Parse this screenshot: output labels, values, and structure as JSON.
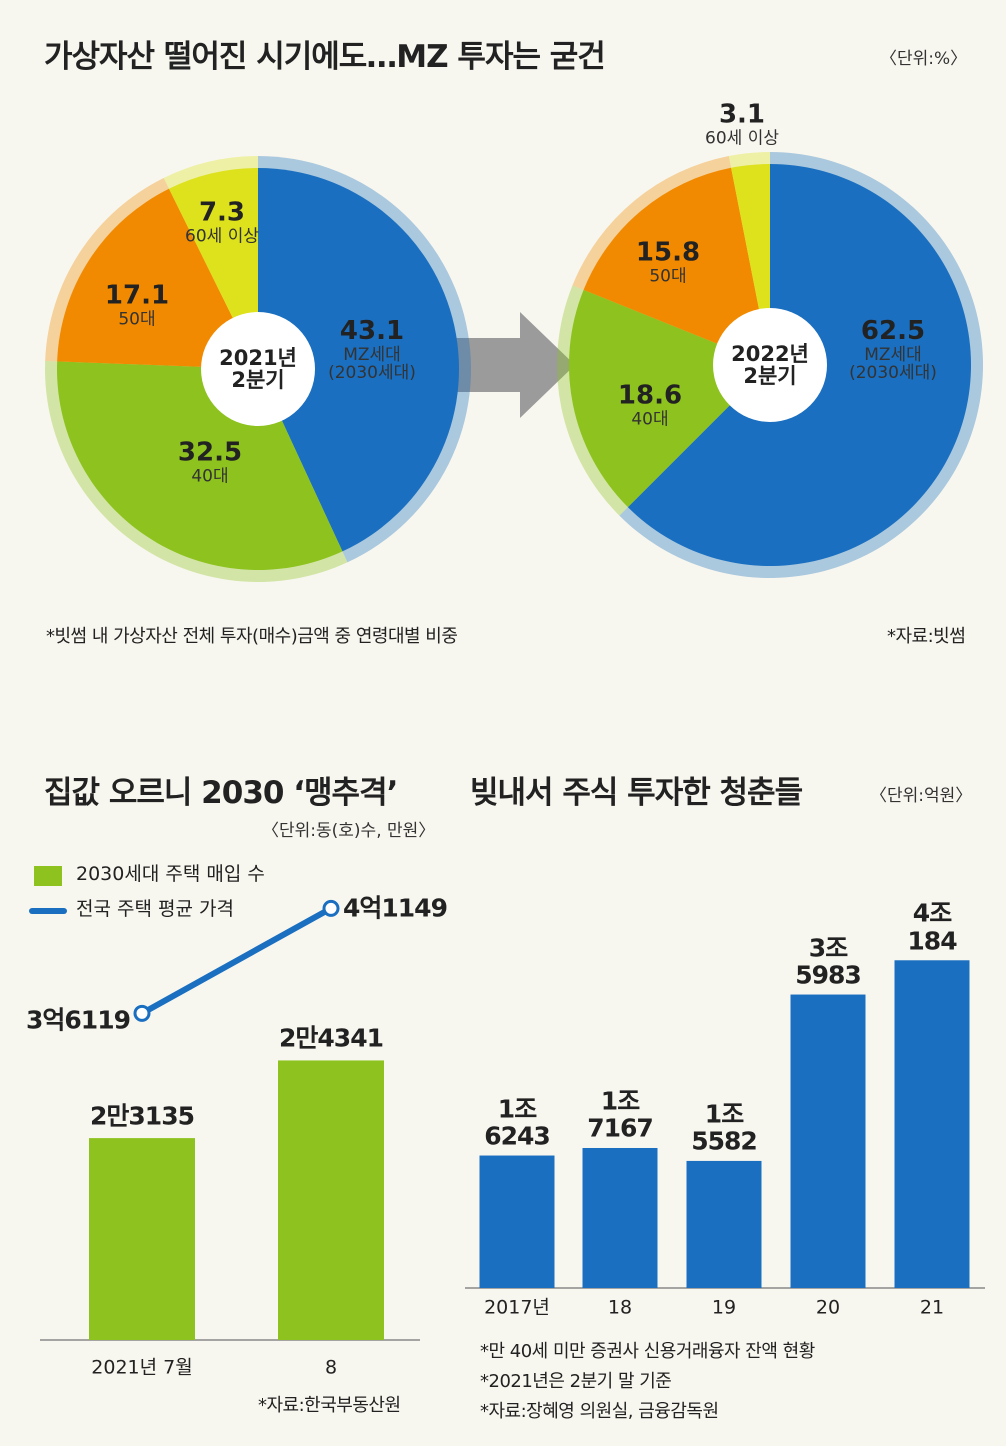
{
  "chart_data": [
    {
      "type": "pie",
      "title": "가상자산 떨어진 시기에도…MZ 투자는 굳건",
      "unit": "〈단위:%〉",
      "center_label": "2021년\n2분기",
      "categories": [
        "MZ세대\n(2030세대)",
        "40대",
        "50대",
        "60세 이상"
      ],
      "values": [
        43.1,
        32.5,
        17.1,
        7.3
      ],
      "colors": [
        "#1a6fc0",
        "#8dc21f",
        "#f18a00",
        "#dde21c"
      ],
      "note": "*빗썸 내 가상자산 전체 투자(매수)금액 중 연령대별 비중",
      "source": "*자료:빗썸"
    },
    {
      "type": "pie",
      "center_label": "2022년\n2분기",
      "categories": [
        "MZ세대\n(2030세대)",
        "40대",
        "50대",
        "60세 이상"
      ],
      "values": [
        62.5,
        18.6,
        15.8,
        3.1
      ],
      "colors": [
        "#1a6fc0",
        "#8dc21f",
        "#f18a00",
        "#dde21c"
      ]
    },
    {
      "type": "combo",
      "title": "집값 오르니 2030 ‘맹추격’",
      "unit": "〈단위:동(호)수, 만원〉",
      "categories": [
        "2021년 7월",
        "8"
      ],
      "ylim": [
        20000,
        25000
      ],
      "y2lim": [
        30000,
        45000
      ],
      "series": [
        {
          "name": "2030세대 주택 매입 수",
          "kind": "bar",
          "color": "#8dc21f",
          "values": [
            23135,
            24341
          ],
          "value_labels": [
            "2만3135",
            "2만4341"
          ]
        },
        {
          "name": "전국 주택 평균 가격",
          "kind": "line",
          "axis": "y2",
          "color": "#1a6fc0",
          "values": [
            36119,
            41149
          ],
          "value_labels": [
            "3억6119",
            "4억1149"
          ]
        }
      ],
      "source": "*자료:한국부동산원"
    },
    {
      "type": "bar",
      "title": "빚내서 주식 투자한 청춘들",
      "unit": "〈단위:억원〉",
      "categories": [
        "2017년",
        "18",
        "19",
        "20",
        "21"
      ],
      "values": [
        16243,
        17167,
        15582,
        35983,
        40184
      ],
      "value_labels": [
        "1조\n6243",
        "1조\n7167",
        "1조\n5582",
        "3조\n5983",
        "4조\n184"
      ],
      "color": "#1a6fc0",
      "ylim": [
        0,
        45000
      ],
      "notes": [
        "*만 40세 미만 증권사 신용거래융자 잔액 현황",
        "*2021년은 2분기 말 기준",
        "*자료:장혜영 의원실, 금융감독원"
      ]
    }
  ]
}
